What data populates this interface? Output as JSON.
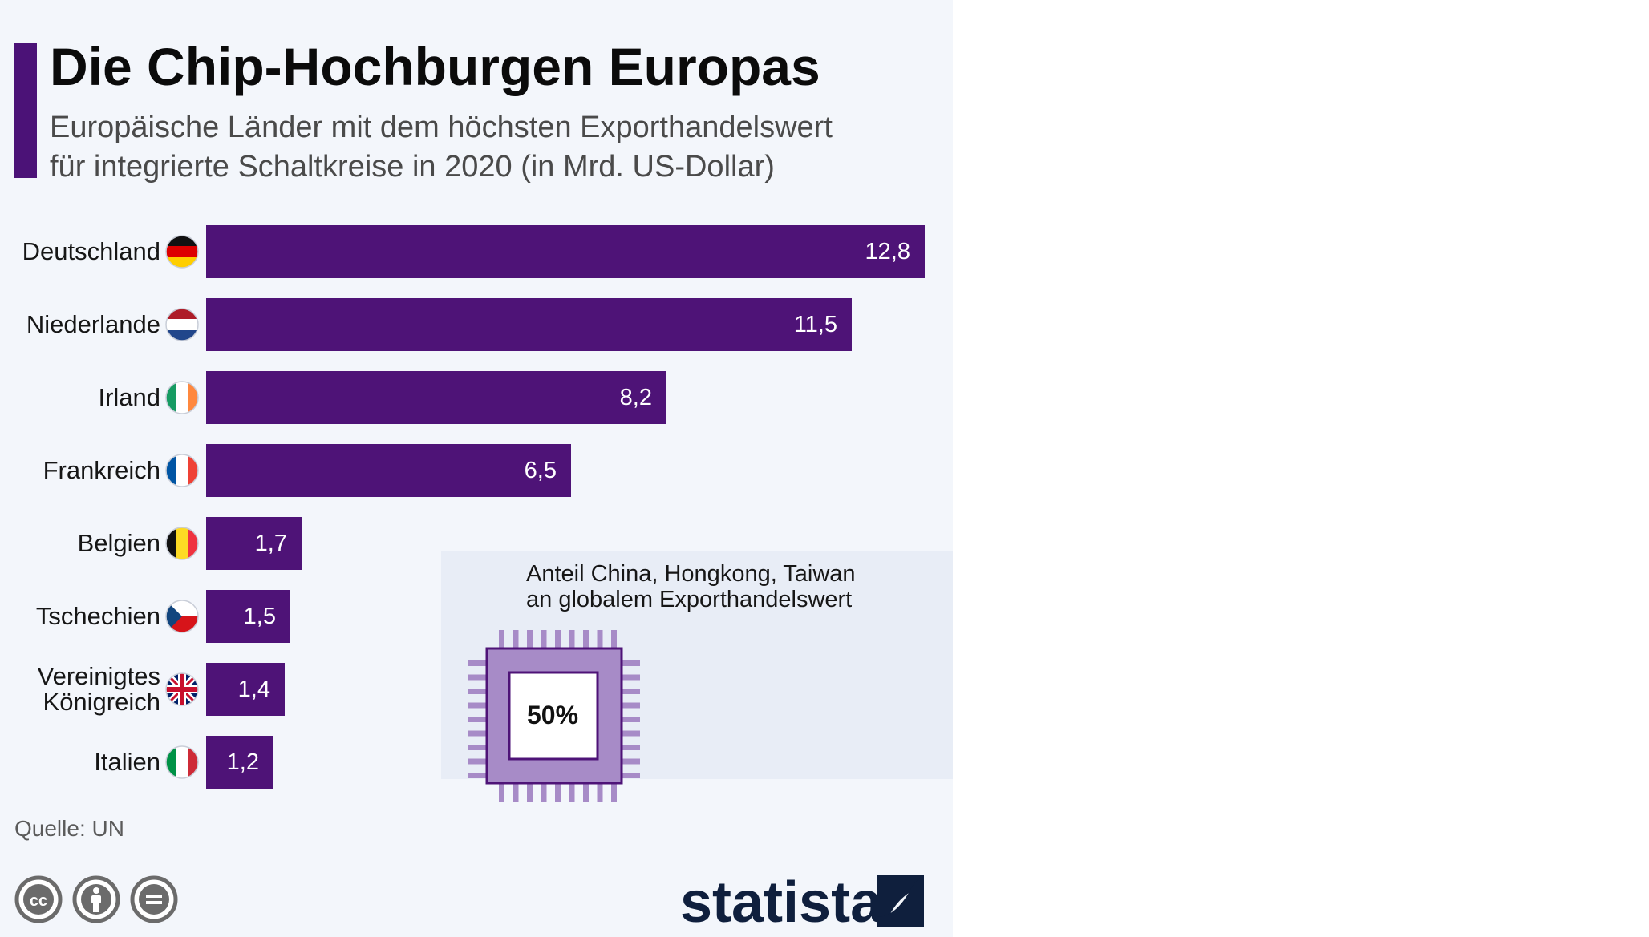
{
  "header": {
    "title": "Die Chip-Hochburgen Europas",
    "subtitle_line_1": "Europäische Länder mit dem höchsten Exporthandelswert",
    "subtitle_line_2": "für integrierte Schaltkreise in 2020 (in Mrd. US-Dollar)"
  },
  "chart_data": {
    "type": "bar",
    "orientation": "horizontal",
    "title": "Die Chip-Hochburgen Europas",
    "categories": [
      "Deutschland",
      "Niederlande",
      "Irland",
      "Frankreich",
      "Belgien",
      "Tschechien",
      "Vereinigtes Königreich",
      "Italien"
    ],
    "category_lines": [
      [
        "Deutschland"
      ],
      [
        "Niederlande"
      ],
      [
        "Irland"
      ],
      [
        "Frankreich"
      ],
      [
        "Belgien"
      ],
      [
        "Tschechien"
      ],
      [
        "Vereinigtes",
        "Königreich"
      ],
      [
        "Italien"
      ]
    ],
    "values": [
      12.8,
      11.5,
      8.2,
      6.5,
      1.7,
      1.5,
      1.4,
      1.2
    ],
    "value_labels": [
      "12,8",
      "11,5",
      "8,2",
      "6,5",
      "1,7",
      "1,5",
      "1,4",
      "1,2"
    ],
    "flags": [
      "flag-germany-icon",
      "flag-netherlands-icon",
      "flag-ireland-icon",
      "flag-france-icon",
      "flag-belgium-icon",
      "flag-czechia-icon",
      "flag-united-kingdom-icon",
      "flag-italy-icon"
    ],
    "xlim": [
      0,
      12.8
    ],
    "grid": false,
    "bar_color": "#4e1377"
  },
  "info_box": {
    "line_1": "Anteil China, Hongkong, Taiwan",
    "line_2": "an globalem Exporthandelswert",
    "value": "50%",
    "icon": "chip-icon",
    "chip_color": "#a78bc7"
  },
  "footer": {
    "source": "Quelle: UN",
    "license_icons": [
      "cc-icon",
      "by-icon",
      "nd-icon"
    ],
    "brand": "statista"
  },
  "colors": {
    "accent": "#4b1277",
    "background": "#f3f6fb",
    "info_background": "#e8edf6",
    "brand": "#0f1f3d"
  }
}
